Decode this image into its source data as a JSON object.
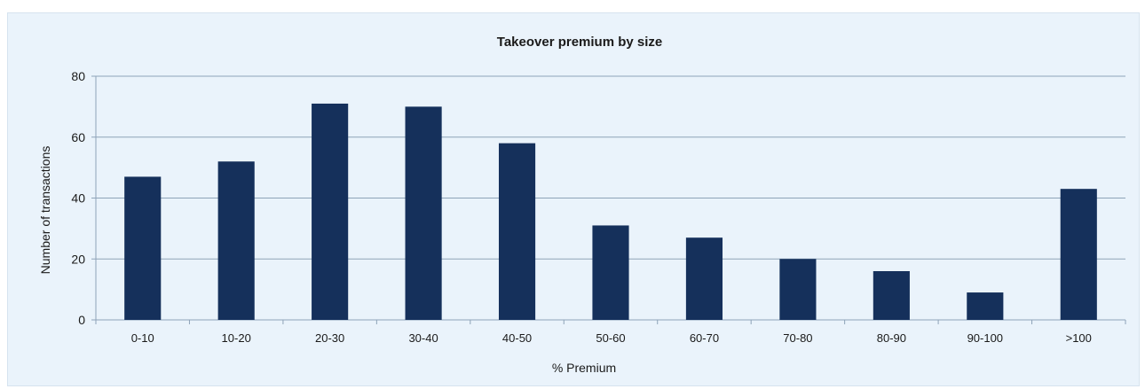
{
  "chart_data": {
    "type": "bar",
    "title": "Takeover premium by size",
    "xlabel": "% Premium",
    "ylabel": "Number of transactions",
    "categories": [
      "0-10",
      "10-20",
      "20-30",
      "30-40",
      "40-50",
      "50-60",
      "60-70",
      "70-80",
      "80-90",
      "90-100",
      ">100"
    ],
    "values": [
      47,
      52,
      71,
      70,
      58,
      31,
      27,
      20,
      16,
      9,
      43
    ],
    "ylim": [
      0,
      80
    ],
    "yticks": [
      0,
      20,
      40,
      60,
      80
    ],
    "grid": true,
    "legend": "none",
    "colors": {
      "bar": "#15305b",
      "grid": "#8ea3b8",
      "axis": "#8ea3b8",
      "background": "#eaf3fb"
    }
  }
}
